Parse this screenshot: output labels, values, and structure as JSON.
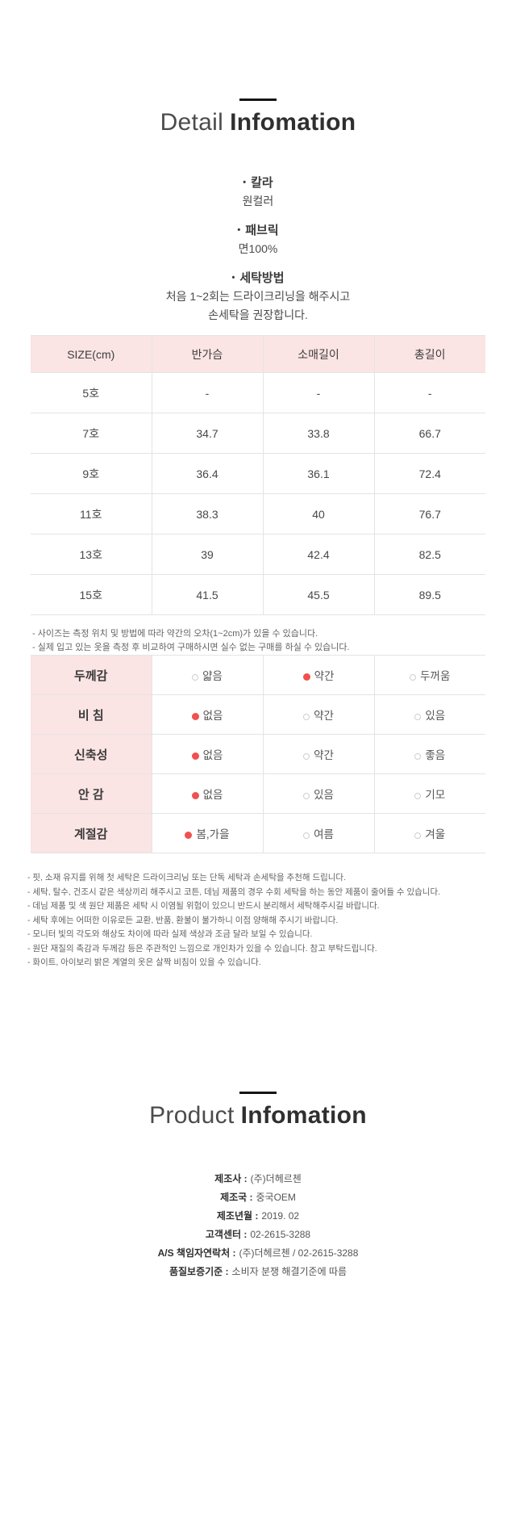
{
  "detail_section": {
    "title_light": "Detail",
    "title_bold": "Infomation",
    "bullets": [
      {
        "label": "칼라",
        "line1": "원컬러",
        "line2": ""
      },
      {
        "label": "패브릭",
        "line1": "면100%",
        "line2": ""
      },
      {
        "label": "세탁방법",
        "line1": "처음 1~2회는 드라이크리닝을 해주시고",
        "line2": "손세탁을 권장합니다."
      }
    ]
  },
  "size_table": {
    "headers": [
      "SIZE(cm)",
      "반가슴",
      "소매길이",
      "총길이"
    ],
    "rows": [
      [
        "5호",
        "-",
        "-",
        "-"
      ],
      [
        "7호",
        "34.7",
        "33.8",
        "66.7"
      ],
      [
        "9호",
        "36.4",
        "36.1",
        "72.4"
      ],
      [
        "11호",
        "38.3",
        "40",
        "76.7"
      ],
      [
        "13호",
        "39",
        "42.4",
        "82.5"
      ],
      [
        "15호",
        "41.5",
        "45.5",
        "89.5"
      ]
    ],
    "notes": [
      "- 사이즈는 측정 위치 및 방법에 따라 약간의 오차(1~2cm)가 있을 수 있습니다.",
      "- 실제 입고 있는 옷을 측정 후 비교하여 구매하시면 실수 없는 구매를 하실 수 있습니다."
    ]
  },
  "attribute_table": {
    "rows": [
      {
        "label": "두께감",
        "options": [
          {
            "text": "얇음",
            "selected": false
          },
          {
            "text": "약간",
            "selected": true
          },
          {
            "text": "두꺼움",
            "selected": false
          }
        ]
      },
      {
        "label": "비  침",
        "options": [
          {
            "text": "없음",
            "selected": true
          },
          {
            "text": "약간",
            "selected": false
          },
          {
            "text": "있음",
            "selected": false
          }
        ]
      },
      {
        "label": "신축성",
        "options": [
          {
            "text": "없음",
            "selected": true
          },
          {
            "text": "약간",
            "selected": false
          },
          {
            "text": "좋음",
            "selected": false
          }
        ]
      },
      {
        "label": "안  감",
        "options": [
          {
            "text": "없음",
            "selected": true
          },
          {
            "text": "있음",
            "selected": false
          },
          {
            "text": "기모",
            "selected": false
          }
        ]
      },
      {
        "label": "계절감",
        "options": [
          {
            "text": "봄,가을",
            "selected": true
          },
          {
            "text": "여름",
            "selected": false
          },
          {
            "text": "겨울",
            "selected": false
          }
        ]
      }
    ]
  },
  "care_notes": [
    "- 핏, 소재 유지를 위해 첫 세탁은 드라이크리닝 또는 단독 세탁과 손세탁을 추천해 드립니다.",
    "- 세탁, 탈수, 건조시 같은 색상끼리 해주시고 코튼, 데님 제품의 경우 수회 세탁을 하는 동안 제품이 줄어들 수 있습니다.",
    "- 데님 제품 및 색 원단 제품은 세탁 시 이염될 위험이 있으니 반드시 분리해서 세탁해주시길 바랍니다.",
    "- 세탁 후에는 어떠한 이유로든 교환, 반품, 환불이 불가하니 이점 양해해 주시기 바랍니다.",
    "- 모니터 빛의 각도와 해상도 차이에 따라 실제 색상과 조금 달라 보일 수 있습니다.",
    "- 원단 재질의 촉감과 두께감 등은 주관적인 느낌으로 개인차가 있을 수 있습니다. 참고 부탁드립니다.",
    "- 화이트, 아이보리 밝은 계열의 옷은 살짝 비침이 있을 수 있습니다."
  ],
  "product_section": {
    "title_light": "Product",
    "title_bold": "Infomation",
    "fields": [
      {
        "label": "제조사 :",
        "value": "(주)더헤르첸"
      },
      {
        "label": "제조국 :",
        "value": "중국OEM"
      },
      {
        "label": "제조년월 :",
        "value": "2019. 02"
      },
      {
        "label": "고객센터 :",
        "value": "02-2615-3288"
      },
      {
        "label": "A/S 책임자연락처 :",
        "value": "(주)더헤르첸 / 02-2615-3288"
      },
      {
        "label": "품질보증기준 :",
        "value": "소비자 분쟁 해결기준에 따름"
      }
    ]
  },
  "colors": {
    "accent_pink": "#fbe4e4",
    "radio_red": "#f0504e",
    "border_gray": "#e4e4e4",
    "title_dark": "#2f2f2f"
  }
}
